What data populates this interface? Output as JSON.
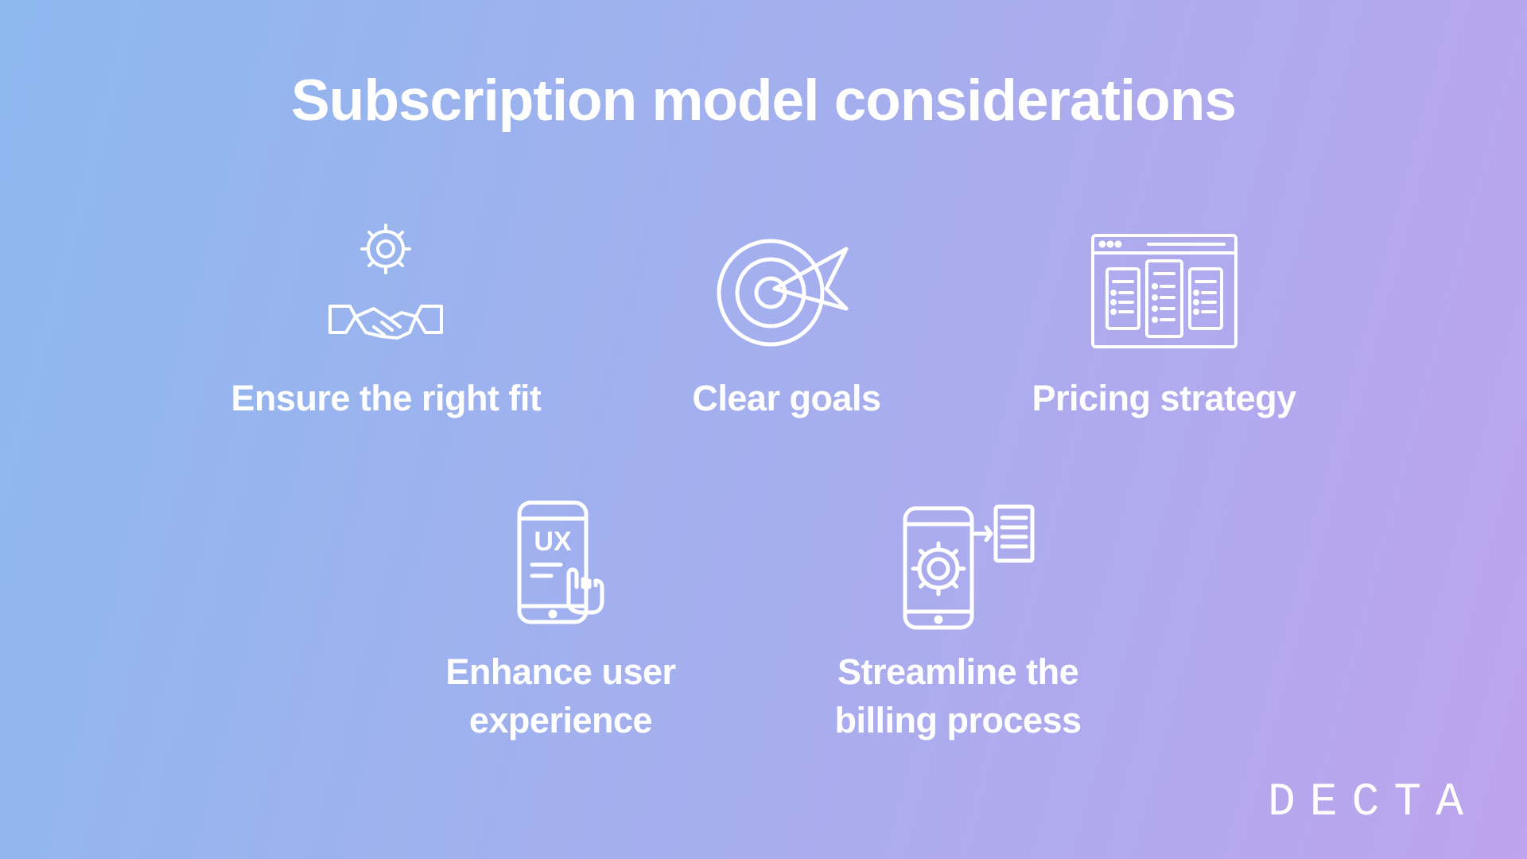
{
  "background": {
    "gradient_start": "#8db9ef",
    "gradient_end": "#bda4ed",
    "gradient_angle": 105
  },
  "title": "Subscription model considerations",
  "title_fontsize": 73,
  "title_color": "#ffffff",
  "icon_color": "#ffffff",
  "icon_stroke_width": 3,
  "label_fontsize": 45,
  "label_color": "#ffffff",
  "items_row1": [
    {
      "icon": "handshake-gear",
      "label": "Ensure the right fit"
    },
    {
      "icon": "target-arrow",
      "label": "Clear goals"
    },
    {
      "icon": "browser-cards",
      "label": "Pricing strategy"
    }
  ],
  "items_row2": [
    {
      "icon": "phone-ux",
      "label": "Enhance user\nexperience"
    },
    {
      "icon": "phone-gear-doc",
      "label": "Streamline the\nbilling process"
    }
  ],
  "logo_text": "DECTA",
  "logo_color": "#ffffff"
}
